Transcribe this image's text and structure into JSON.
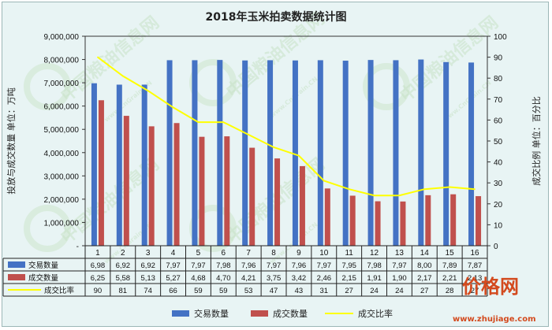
{
  "colors": {
    "trade_bar": "#4472c4",
    "deal_bar": "#c0504d",
    "ratio_line": "#ffff00",
    "background": "#e8f4f4",
    "grid": "#222222"
  },
  "watermarks": {
    "site_cn": "中国粮油信息网",
    "site_en": "www.CnGrain.CN",
    "site2_cn": "价格网",
    "site2_url": "www.zhujiage.com"
  },
  "chart_data": {
    "type": "bar",
    "title": "2018年玉米拍卖数据统计图",
    "ylabel_left": "投放与成交数量 单位：万吨",
    "ylabel_right": "成交比例 单位：百分比",
    "categories": [
      "1",
      "2",
      "3",
      "4",
      "5",
      "6",
      "7",
      "8",
      "9",
      "10",
      "11",
      "12",
      "13",
      "14",
      "15",
      "16"
    ],
    "ylim_left": [
      0,
      9000000
    ],
    "ylim_right": [
      0,
      100
    ],
    "left_ticks": [
      "-",
      "1,000,000",
      "2,000,000",
      "3,000,000",
      "4,000,000",
      "5,000,000",
      "6,000,000",
      "7,000,000",
      "8,000,000",
      "9,000,000"
    ],
    "right_ticks": [
      "0",
      "10",
      "20",
      "30",
      "40",
      "50",
      "60",
      "70",
      "80",
      "90",
      "100"
    ],
    "series": [
      {
        "name": "交易数量",
        "kind": "bar",
        "values": [
          6980000,
          6920000,
          6920000,
          7970000,
          7970000,
          7980000,
          7960000,
          7970000,
          7960000,
          7970000,
          7950000,
          7980000,
          7970000,
          8000000,
          7890000,
          7870000
        ],
        "table": [
          "6,98",
          "6,92",
          "6,92",
          "7,97",
          "7,97",
          "7,98",
          "7,96",
          "7,97",
          "7,96",
          "7,97",
          "7,95",
          "7,98",
          "7,97",
          "8,00",
          "7,89",
          "7,87"
        ]
      },
      {
        "name": "成交数量",
        "kind": "bar",
        "values": [
          6250000,
          5580000,
          5130000,
          5270000,
          4680000,
          4700000,
          4210000,
          3750000,
          3420000,
          2460000,
          2150000,
          1910000,
          1900000,
          2170000,
          2210000,
          2130000
        ],
        "table": [
          "6,25",
          "5,58",
          "5,13",
          "5,27",
          "4,68",
          "4,70",
          "4,21",
          "3,75",
          "3,42",
          "2,46",
          "2,15",
          "1,91",
          "1,90",
          "2,17",
          "2,21",
          "2,13"
        ]
      },
      {
        "name": "成交比率",
        "kind": "line",
        "axis": "right",
        "values": [
          90,
          81,
          74,
          66,
          59,
          59,
          53,
          47,
          43,
          31,
          27,
          24,
          24,
          27,
          28,
          27
        ],
        "table": [
          "90",
          "81",
          "74",
          "66",
          "59",
          "59",
          "53",
          "47",
          "43",
          "31",
          "27",
          "24",
          "24",
          "27",
          "28",
          "27"
        ]
      }
    ],
    "legend_position": "bottom",
    "grid": false
  }
}
